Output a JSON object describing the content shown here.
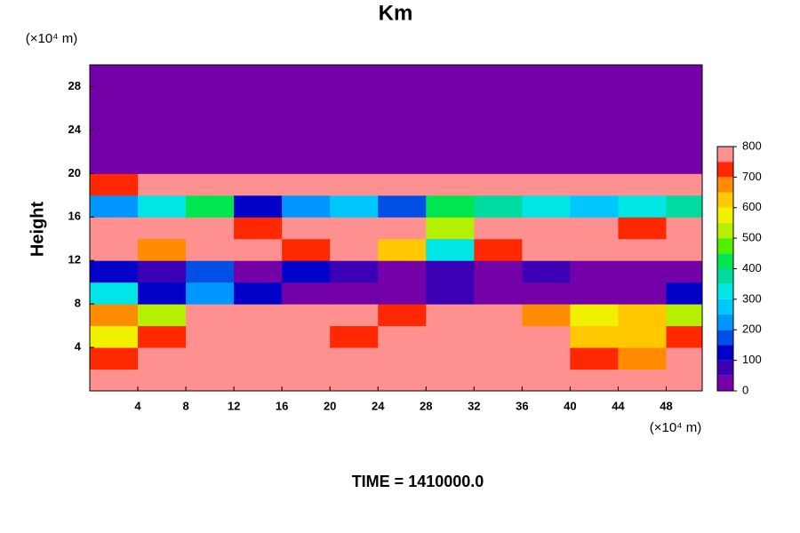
{
  "chart_data": {
    "type": "heatmap",
    "title": "Km",
    "y_label": "Height",
    "y_unit": "(×10⁴ m)",
    "x_unit": "(×10⁴ m)",
    "footer": "TIME = 1410000.0",
    "xlim": [
      0,
      51
    ],
    "ylim": [
      0,
      30
    ],
    "xticks": [
      4,
      8,
      12,
      16,
      20,
      24,
      28,
      32,
      36,
      40,
      44,
      48
    ],
    "yticks": [
      4,
      8,
      12,
      16,
      20,
      24,
      28
    ],
    "x": [
      2,
      6,
      10,
      14,
      18,
      22,
      26,
      30,
      34,
      38,
      42,
      46,
      50
    ],
    "y": [
      1,
      3,
      5,
      7,
      9,
      11,
      13,
      15,
      17,
      19,
      21,
      23,
      25,
      27,
      29
    ],
    "z": [
      [
        800,
        800,
        800,
        800,
        800,
        800,
        800,
        800,
        800,
        800,
        800,
        750,
        800
      ],
      [
        700,
        800,
        750,
        800,
        800,
        800,
        800,
        800,
        800,
        800,
        700,
        650,
        750
      ],
      [
        550,
        700,
        800,
        750,
        800,
        700,
        750,
        800,
        800,
        750,
        600,
        600,
        700
      ],
      [
        650,
        500,
        750,
        800,
        800,
        800,
        700,
        800,
        800,
        650,
        550,
        600,
        500
      ],
      [
        300,
        100,
        200,
        100,
        0,
        0,
        0,
        50,
        0,
        0,
        0,
        0,
        100
      ],
      [
        100,
        50,
        150,
        0,
        100,
        50,
        0,
        50,
        0,
        50,
        0,
        0,
        0
      ],
      [
        800,
        650,
        800,
        800,
        700,
        800,
        600,
        300,
        700,
        800,
        800,
        800,
        800
      ],
      [
        800,
        800,
        750,
        700,
        800,
        800,
        750,
        500,
        800,
        800,
        750,
        700,
        800
      ],
      [
        200,
        300,
        400,
        100,
        200,
        250,
        150,
        400,
        350,
        300,
        250,
        300,
        350
      ],
      [
        700,
        800,
        800,
        800,
        800,
        800,
        800,
        800,
        800,
        800,
        800,
        800,
        750
      ],
      [
        0,
        0,
        0,
        0,
        0,
        0,
        0,
        0,
        0,
        0,
        0,
        0,
        0
      ],
      [
        0,
        0,
        0,
        0,
        0,
        0,
        0,
        0,
        0,
        0,
        0,
        0,
        0
      ],
      [
        0,
        0,
        0,
        0,
        0,
        0,
        0,
        0,
        0,
        0,
        0,
        0,
        0
      ],
      [
        0,
        0,
        0,
        0,
        0,
        0,
        0,
        0,
        0,
        0,
        0,
        0,
        0
      ],
      [
        0,
        0,
        0,
        0,
        0,
        0,
        0,
        0,
        0,
        0,
        0,
        0,
        0
      ]
    ],
    "levels": [
      0,
      50,
      100,
      150,
      200,
      250,
      300,
      350,
      400,
      450,
      500,
      550,
      600,
      650,
      700,
      750,
      800
    ],
    "colors": [
      "#7400a8",
      "#3c00b4",
      "#0000c8",
      "#0050e6",
      "#0096ff",
      "#00c8ff",
      "#00e6e6",
      "#00dca0",
      "#00e650",
      "#50f000",
      "#b4f000",
      "#f0f000",
      "#ffc800",
      "#ff8c00",
      "#ff2800",
      "#ff9090"
    ],
    "colorbar_ticks": [
      0,
      100,
      200,
      300,
      400,
      500,
      600,
      700,
      800
    ]
  }
}
